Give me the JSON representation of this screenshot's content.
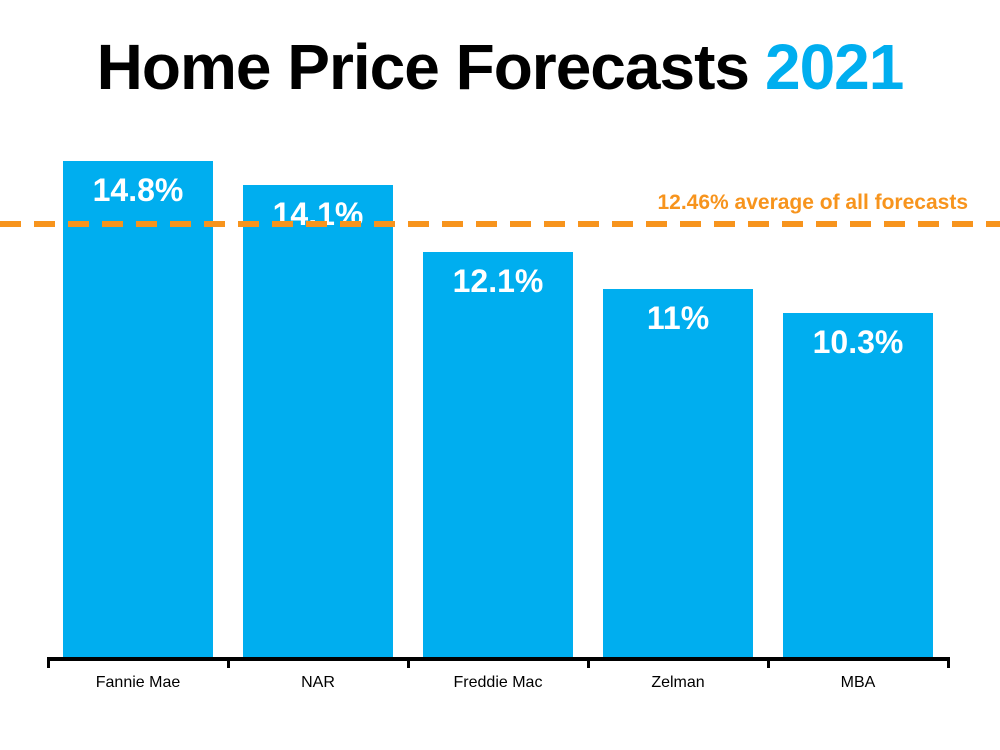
{
  "title": {
    "main": "Home Price Forecasts",
    "year": "2021"
  },
  "colors": {
    "bar": "#00AEEF",
    "title_year": "#00AEEF",
    "title_main": "#000000",
    "average_line": "#F7941D",
    "axis": "#000000",
    "value_label": "#FFFFFF"
  },
  "average_line": {
    "label": "12.46% average of all forecasts",
    "value": 12.46
  },
  "chart_data": {
    "type": "bar",
    "title": "Home Price Forecasts 2021",
    "categories": [
      "Fannie Mae",
      "NAR",
      "Freddie Mac",
      "Zelman",
      "MBA"
    ],
    "values": [
      14.8,
      14.1,
      12.1,
      11,
      10.3
    ],
    "value_labels": [
      "14.8%",
      "14.1%",
      "12.1%",
      "11%",
      "10.3%"
    ],
    "xlabel": "",
    "ylabel": "",
    "ylim": [
      0,
      16.5
    ],
    "grid": false,
    "legend": false,
    "annotations": [
      {
        "type": "horizontal-dashed-line",
        "value": 12.46,
        "text": "12.46% average of all forecasts",
        "color": "#F7941D",
        "label_position": "right-above-line"
      }
    ]
  }
}
